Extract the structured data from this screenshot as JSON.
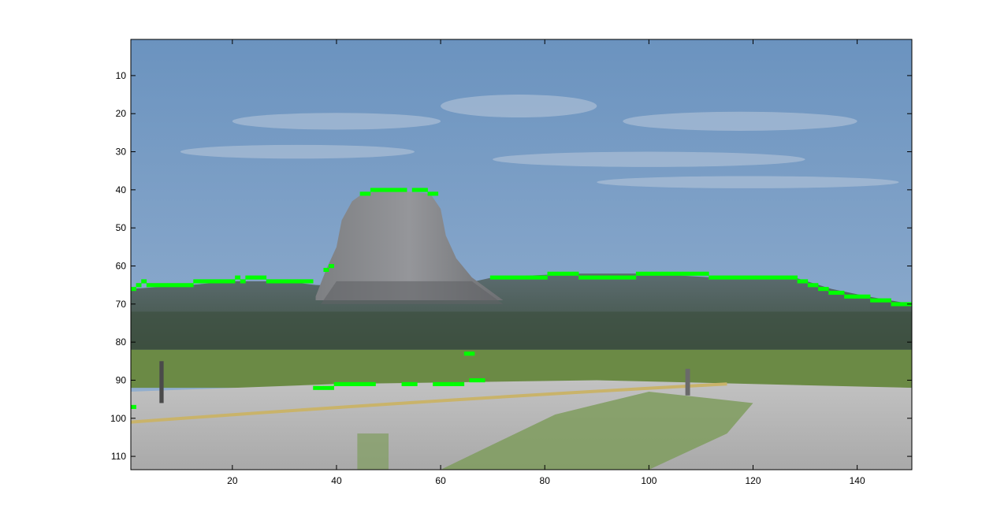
{
  "chart_data": {
    "type": "image",
    "image_size": [
      150,
      113
    ],
    "xlim": [
      0.5,
      150.5
    ],
    "ylim": [
      0.5,
      113.5
    ],
    "y_direction": "reverse",
    "grid": false,
    "x_ticks": [
      20,
      40,
      60,
      80,
      100,
      120,
      140
    ],
    "y_ticks": [
      10,
      20,
      30,
      40,
      50,
      60,
      70,
      80,
      90,
      100,
      110
    ],
    "x_tick_labels": [
      "20",
      "40",
      "60",
      "80",
      "100",
      "120",
      "140"
    ],
    "y_tick_labels": [
      "10",
      "20",
      "30",
      "40",
      "50",
      "60",
      "70",
      "80",
      "90",
      "100",
      "110"
    ],
    "scene": [
      "sky",
      "cloud streaks",
      "butte (rock tower)",
      "ridge with forest",
      "grass field",
      "road",
      "roadside shrubs"
    ],
    "overlay": {
      "description": "detected skyline edge pixels",
      "color": "#00ff00",
      "points": [
        [
          1,
          66
        ],
        [
          2,
          65
        ],
        [
          3,
          64
        ],
        [
          4,
          65
        ],
        [
          5,
          65
        ],
        [
          6,
          65
        ],
        [
          7,
          65
        ],
        [
          8,
          65
        ],
        [
          9,
          65
        ],
        [
          10,
          65
        ],
        [
          11,
          65
        ],
        [
          12,
          65
        ],
        [
          13,
          64
        ],
        [
          14,
          64
        ],
        [
          15,
          64
        ],
        [
          16,
          64
        ],
        [
          17,
          64
        ],
        [
          18,
          64
        ],
        [
          19,
          64
        ],
        [
          20,
          64
        ],
        [
          21,
          63
        ],
        [
          22,
          64
        ],
        [
          23,
          63
        ],
        [
          24,
          63
        ],
        [
          25,
          63
        ],
        [
          26,
          63
        ],
        [
          27,
          64
        ],
        [
          28,
          64
        ],
        [
          29,
          64
        ],
        [
          30,
          64
        ],
        [
          31,
          64
        ],
        [
          32,
          64
        ],
        [
          33,
          64
        ],
        [
          34,
          64
        ],
        [
          35,
          64
        ],
        [
          38,
          61
        ],
        [
          39,
          60
        ],
        [
          45,
          41
        ],
        [
          46,
          41
        ],
        [
          47,
          40
        ],
        [
          48,
          40
        ],
        [
          49,
          40
        ],
        [
          50,
          40
        ],
        [
          51,
          40
        ],
        [
          52,
          40
        ],
        [
          53,
          40
        ],
        [
          55,
          40
        ],
        [
          56,
          40
        ],
        [
          57,
          40
        ],
        [
          58,
          41
        ],
        [
          59,
          41
        ],
        [
          70,
          63
        ],
        [
          71,
          63
        ],
        [
          72,
          63
        ],
        [
          73,
          63
        ],
        [
          74,
          63
        ],
        [
          75,
          63
        ],
        [
          76,
          63
        ],
        [
          77,
          63
        ],
        [
          78,
          63
        ],
        [
          79,
          63
        ],
        [
          80,
          63
        ],
        [
          81,
          62
        ],
        [
          82,
          62
        ],
        [
          83,
          62
        ],
        [
          84,
          62
        ],
        [
          85,
          62
        ],
        [
          86,
          62
        ],
        [
          87,
          63
        ],
        [
          88,
          63
        ],
        [
          89,
          63
        ],
        [
          90,
          63
        ],
        [
          91,
          63
        ],
        [
          92,
          63
        ],
        [
          93,
          63
        ],
        [
          94,
          63
        ],
        [
          95,
          63
        ],
        [
          96,
          63
        ],
        [
          97,
          63
        ],
        [
          98,
          62
        ],
        [
          99,
          62
        ],
        [
          100,
          62
        ],
        [
          101,
          62
        ],
        [
          102,
          62
        ],
        [
          103,
          62
        ],
        [
          104,
          62
        ],
        [
          105,
          62
        ],
        [
          106,
          62
        ],
        [
          107,
          62
        ],
        [
          108,
          62
        ],
        [
          109,
          62
        ],
        [
          110,
          62
        ],
        [
          111,
          62
        ],
        [
          112,
          63
        ],
        [
          113,
          63
        ],
        [
          114,
          63
        ],
        [
          115,
          63
        ],
        [
          116,
          63
        ],
        [
          117,
          63
        ],
        [
          118,
          63
        ],
        [
          119,
          63
        ],
        [
          120,
          63
        ],
        [
          121,
          63
        ],
        [
          122,
          63
        ],
        [
          123,
          63
        ],
        [
          124,
          63
        ],
        [
          125,
          63
        ],
        [
          126,
          63
        ],
        [
          127,
          63
        ],
        [
          128,
          63
        ],
        [
          129,
          64
        ],
        [
          130,
          64
        ],
        [
          131,
          65
        ],
        [
          132,
          65
        ],
        [
          133,
          66
        ],
        [
          134,
          66
        ],
        [
          135,
          67
        ],
        [
          136,
          67
        ],
        [
          137,
          67
        ],
        [
          138,
          68
        ],
        [
          139,
          68
        ],
        [
          140,
          68
        ],
        [
          141,
          68
        ],
        [
          142,
          68
        ],
        [
          143,
          69
        ],
        [
          144,
          69
        ],
        [
          145,
          69
        ],
        [
          146,
          69
        ],
        [
          147,
          70
        ],
        [
          148,
          70
        ],
        [
          149,
          70
        ],
        [
          150,
          70
        ],
        [
          65,
          83
        ],
        [
          66,
          83
        ],
        [
          36,
          92
        ],
        [
          37,
          92
        ],
        [
          38,
          92
        ],
        [
          39,
          92
        ],
        [
          40,
          91
        ],
        [
          41,
          91
        ],
        [
          42,
          91
        ],
        [
          43,
          91
        ],
        [
          44,
          91
        ],
        [
          45,
          91
        ],
        [
          46,
          91
        ],
        [
          47,
          91
        ],
        [
          53,
          91
        ],
        [
          54,
          91
        ],
        [
          55,
          91
        ],
        [
          59,
          91
        ],
        [
          60,
          91
        ],
        [
          61,
          91
        ],
        [
          62,
          91
        ],
        [
          63,
          91
        ],
        [
          64,
          91
        ],
        [
          66,
          90
        ],
        [
          67,
          90
        ],
        [
          68,
          90
        ],
        [
          1,
          97
        ]
      ]
    },
    "colors": {
      "sky_top": "#6b93bf",
      "sky_bottom": "#9ab4d2",
      "cloud": "#b9c9db",
      "butte": "#8c8c8c",
      "butte_dark": "#606266",
      "ridge": "#4f5f55",
      "forest": "#3d5040",
      "field": "#6b8a45",
      "road": "#b4b4b4",
      "road_line": "#c9b36a",
      "shrub": "#7f9c5e",
      "axis": "#000000"
    }
  }
}
